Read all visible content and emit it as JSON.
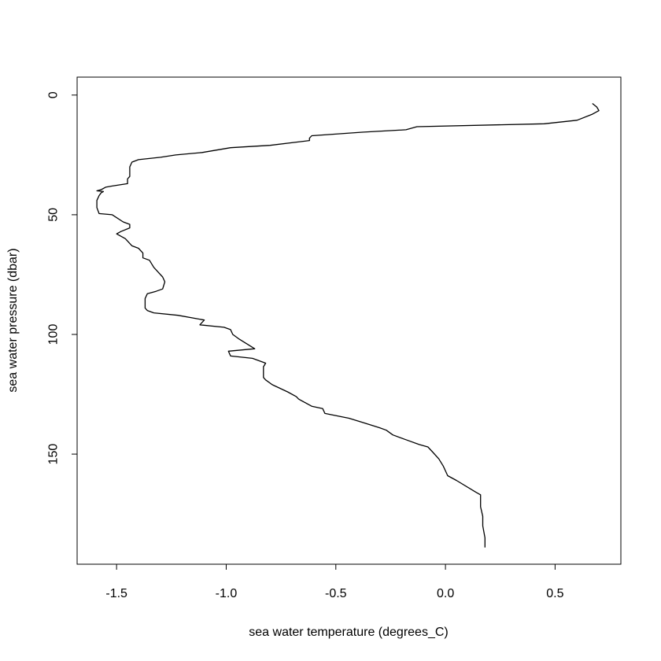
{
  "chart_data": {
    "type": "line",
    "title": "",
    "xlabel": "sea water temperature (degrees_C)",
    "ylabel": "sea water pressure (dbar)",
    "xlim": [
      -1.68,
      0.8
    ],
    "ylim": [
      -7.5,
      196
    ],
    "y_inverted": true,
    "grid": false,
    "line_color": "#000000",
    "x_ticks": [
      {
        "value": -1.5,
        "label": "-1.5"
      },
      {
        "value": -1.0,
        "label": "-1.0"
      },
      {
        "value": -0.5,
        "label": "-0.5"
      },
      {
        "value": 0.0,
        "label": "0.0"
      },
      {
        "value": 0.5,
        "label": "0.5"
      }
    ],
    "y_ticks": [
      {
        "value": 0,
        "label": "0"
      },
      {
        "value": 50,
        "label": "50"
      },
      {
        "value": 100,
        "label": "100"
      },
      {
        "value": 150,
        "label": "150"
      }
    ],
    "series": [
      {
        "x": [
          0.67,
          0.69,
          0.7,
          0.67,
          0.6,
          0.45,
          -0.13,
          -0.18,
          -0.38,
          -0.61,
          -0.62,
          -0.62,
          -0.8,
          -0.98,
          -1.11,
          -1.23,
          -1.3,
          -1.4,
          -1.43,
          -1.44,
          -1.44,
          -1.45,
          -1.45,
          -1.52,
          -1.55,
          -1.57,
          -1.59,
          -1.56,
          -1.57,
          -1.58,
          -1.59,
          -1.59,
          -1.58,
          -1.52,
          -1.47,
          -1.44,
          -1.44,
          -1.48,
          -1.5,
          -1.46,
          -1.43,
          -1.4,
          -1.38,
          -1.38,
          -1.35,
          -1.33,
          -1.31,
          -1.29,
          -1.28,
          -1.29,
          -1.32,
          -1.36,
          -1.37,
          -1.37,
          -1.37,
          -1.36,
          -1.33,
          -1.22,
          -1.1,
          -1.12,
          -1.01,
          -0.98,
          -0.97,
          -0.94,
          -0.87,
          -0.99,
          -0.98,
          -0.88,
          -0.82,
          -0.83,
          -0.83,
          -0.82,
          -0.79,
          -0.72,
          -0.68,
          -0.67,
          -0.61,
          -0.56,
          -0.55,
          -0.44,
          -0.37,
          -0.3,
          -0.27,
          -0.24,
          -0.18,
          -0.12,
          -0.08,
          -0.06,
          -0.03,
          -0.01,
          0.0,
          0.01,
          0.05,
          0.14,
          0.16,
          0.16,
          0.17,
          0.17,
          0.18,
          0.18
        ],
        "y": [
          3.5,
          5.0,
          6.5,
          8.0,
          10.5,
          12.0,
          13.2,
          14.5,
          15.5,
          17.0,
          18.0,
          19.0,
          21.0,
          22.0,
          24.0,
          25.0,
          26.0,
          27.0,
          28.0,
          30.0,
          34.0,
          35.0,
          37.0,
          38.0,
          38.5,
          39.5,
          40.0,
          40.3,
          40.8,
          42.0,
          44.0,
          47.0,
          49.5,
          50.0,
          53.0,
          54.0,
          55.5,
          57.0,
          58.0,
          60.0,
          63.0,
          64.0,
          66.0,
          68.0,
          69.0,
          72.0,
          74.0,
          76.0,
          78.0,
          81.0,
          82.0,
          83.0,
          85.0,
          87.0,
          89.0,
          90.0,
          91.0,
          92.0,
          94.0,
          96.0,
          97.0,
          98.0,
          100.0,
          102.0,
          106.0,
          107.0,
          109.0,
          110.0,
          112.0,
          113.5,
          118.0,
          119.0,
          121.0,
          124.0,
          126.0,
          127.0,
          130.0,
          131.0,
          133.0,
          135.0,
          137.0,
          139.0,
          140.0,
          142.0,
          144.0,
          146.0,
          147.0,
          149.0,
          152.0,
          155.0,
          157.0,
          159.0,
          161.0,
          166.0,
          167.0,
          172.0,
          176.0,
          180.0,
          185.0,
          189.0
        ]
      }
    ]
  }
}
